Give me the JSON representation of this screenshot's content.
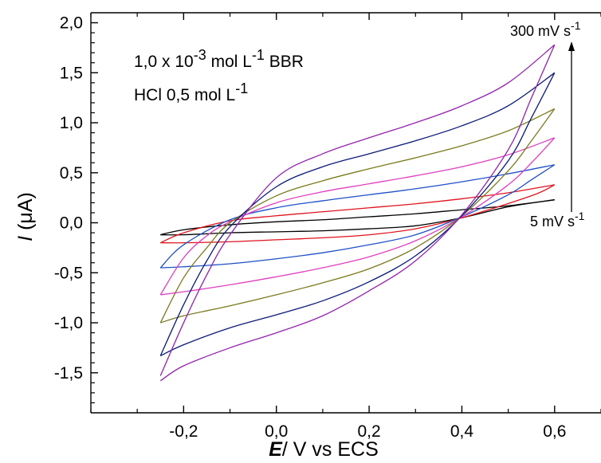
{
  "chart_data": {
    "type": "line",
    "xlabel": {
      "symbol": "E",
      "rest": "/ V vs ECS"
    },
    "ylabel": {
      "symbol": "I",
      "rest": " (μA)"
    },
    "xlim": [
      -0.4,
      0.7
    ],
    "ylim": [
      -1.9,
      2.1
    ],
    "xticks": [
      -0.2,
      0.0,
      0.2,
      0.4,
      0.6
    ],
    "xtick_labels": [
      "-0,2",
      "0,0",
      "0,2",
      "0,4",
      "0,6"
    ],
    "yticks": [
      2.0,
      1.5,
      1.0,
      0.5,
      0.0,
      -0.5,
      -1.0,
      -1.5
    ],
    "ytick_labels": [
      "2,0",
      "1,5",
      "1,0",
      "0,5",
      "0,0",
      "-0,5",
      "-1,0",
      "-1,5"
    ],
    "annotations": {
      "line1": {
        "a": "1,0 x 10",
        "sup1": "-3",
        "b": " mol L",
        "sup2": "-1",
        "c": " BBR"
      },
      "line2": {
        "a": "HCl 0,5 mol L",
        "sup": "-1"
      },
      "top_rate": {
        "a": "300 mV s",
        "sup": "-1"
      },
      "bottom_rate": {
        "a": "5 mV s",
        "sup": "-1"
      }
    },
    "series": [
      {
        "color": "#000000",
        "forward": [
          [
            -0.25,
            -0.12
          ],
          [
            -0.2,
            -0.07
          ],
          [
            -0.1,
            -0.02
          ],
          [
            0.0,
            0.01
          ],
          [
            0.1,
            0.03
          ],
          [
            0.2,
            0.06
          ],
          [
            0.3,
            0.09
          ],
          [
            0.4,
            0.13
          ],
          [
            0.5,
            0.17
          ],
          [
            0.6,
            0.23
          ]
        ],
        "reverse": [
          [
            0.6,
            0.23
          ],
          [
            0.5,
            0.16
          ],
          [
            0.4,
            0.05
          ],
          [
            0.3,
            -0.03
          ],
          [
            0.2,
            -0.06
          ],
          [
            0.1,
            -0.08
          ],
          [
            0.0,
            -0.09
          ],
          [
            -0.1,
            -0.1
          ],
          [
            -0.2,
            -0.12
          ],
          [
            -0.25,
            -0.12
          ]
        ]
      },
      {
        "color": "#e0141e",
        "forward": [
          [
            -0.25,
            -0.2
          ],
          [
            -0.2,
            -0.1
          ],
          [
            -0.1,
            0.02
          ],
          [
            0.0,
            0.07
          ],
          [
            0.1,
            0.11
          ],
          [
            0.2,
            0.15
          ],
          [
            0.3,
            0.19
          ],
          [
            0.4,
            0.24
          ],
          [
            0.5,
            0.3
          ],
          [
            0.6,
            0.38
          ]
        ],
        "reverse": [
          [
            0.6,
            0.38
          ],
          [
            0.55,
            0.27
          ],
          [
            0.4,
            0.05
          ],
          [
            0.3,
            -0.06
          ],
          [
            0.2,
            -0.12
          ],
          [
            0.1,
            -0.15
          ],
          [
            0.0,
            -0.17
          ],
          [
            -0.1,
            -0.19
          ],
          [
            -0.2,
            -0.2
          ],
          [
            -0.25,
            -0.2
          ]
        ]
      },
      {
        "color": "#1e50c8",
        "forward": [
          [
            -0.25,
            -0.45
          ],
          [
            -0.2,
            -0.22
          ],
          [
            -0.1,
            0.03
          ],
          [
            0.0,
            0.15
          ],
          [
            0.1,
            0.22
          ],
          [
            0.2,
            0.28
          ],
          [
            0.3,
            0.34
          ],
          [
            0.4,
            0.41
          ],
          [
            0.5,
            0.49
          ],
          [
            0.6,
            0.58
          ]
        ],
        "reverse": [
          [
            0.6,
            0.58
          ],
          [
            0.55,
            0.43
          ],
          [
            0.5,
            0.28
          ],
          [
            0.4,
            0.06
          ],
          [
            0.3,
            -0.12
          ],
          [
            0.2,
            -0.22
          ],
          [
            0.1,
            -0.3
          ],
          [
            0.0,
            -0.36
          ],
          [
            -0.1,
            -0.41
          ],
          [
            -0.2,
            -0.44
          ],
          [
            -0.25,
            -0.45
          ]
        ]
      },
      {
        "color": "#e040c0",
        "forward": [
          [
            -0.25,
            -0.72
          ],
          [
            -0.2,
            -0.35
          ],
          [
            -0.15,
            -0.13
          ],
          [
            -0.1,
            0.01
          ],
          [
            0.0,
            0.2
          ],
          [
            0.1,
            0.31
          ],
          [
            0.2,
            0.39
          ],
          [
            0.3,
            0.47
          ],
          [
            0.4,
            0.56
          ],
          [
            0.5,
            0.68
          ],
          [
            0.6,
            0.85
          ]
        ],
        "reverse": [
          [
            0.6,
            0.85
          ],
          [
            0.55,
            0.6
          ],
          [
            0.5,
            0.38
          ],
          [
            0.4,
            0.06
          ],
          [
            0.3,
            -0.18
          ],
          [
            0.2,
            -0.34
          ],
          [
            0.1,
            -0.45
          ],
          [
            0.0,
            -0.54
          ],
          [
            -0.1,
            -0.62
          ],
          [
            -0.2,
            -0.69
          ],
          [
            -0.25,
            -0.72
          ]
        ]
      },
      {
        "color": "#7a7a1e",
        "forward": [
          [
            -0.25,
            -1.0
          ],
          [
            -0.2,
            -0.55
          ],
          [
            -0.15,
            -0.25
          ],
          [
            -0.1,
            0.0
          ],
          [
            0.0,
            0.27
          ],
          [
            0.1,
            0.42
          ],
          [
            0.2,
            0.54
          ],
          [
            0.3,
            0.65
          ],
          [
            0.4,
            0.77
          ],
          [
            0.5,
            0.92
          ],
          [
            0.6,
            1.14
          ]
        ],
        "reverse": [
          [
            0.6,
            1.14
          ],
          [
            0.55,
            0.82
          ],
          [
            0.5,
            0.52
          ],
          [
            0.4,
            0.07
          ],
          [
            0.3,
            -0.25
          ],
          [
            0.2,
            -0.46
          ],
          [
            0.1,
            -0.6
          ],
          [
            0.0,
            -0.72
          ],
          [
            -0.1,
            -0.83
          ],
          [
            -0.2,
            -0.93
          ],
          [
            -0.25,
            -1.0
          ]
        ]
      },
      {
        "color": "#0a1a78",
        "forward": [
          [
            -0.25,
            -1.33
          ],
          [
            -0.2,
            -0.82
          ],
          [
            -0.15,
            -0.38
          ],
          [
            -0.1,
            -0.04
          ],
          [
            0.0,
            0.36
          ],
          [
            0.1,
            0.56
          ],
          [
            0.2,
            0.69
          ],
          [
            0.3,
            0.82
          ],
          [
            0.4,
            0.97
          ],
          [
            0.5,
            1.17
          ],
          [
            0.6,
            1.5
          ]
        ],
        "reverse": [
          [
            0.6,
            1.5
          ],
          [
            0.55,
            1.05
          ],
          [
            0.5,
            0.62
          ],
          [
            0.4,
            0.07
          ],
          [
            0.3,
            -0.33
          ],
          [
            0.2,
            -0.59
          ],
          [
            0.1,
            -0.78
          ],
          [
            0.0,
            -0.92
          ],
          [
            -0.1,
            -1.05
          ],
          [
            -0.2,
            -1.22
          ],
          [
            -0.25,
            -1.33
          ]
        ]
      },
      {
        "color": "#9422b0",
        "forward": [
          [
            -0.25,
            -1.53
          ],
          [
            -0.2,
            -1.0
          ],
          [
            -0.15,
            -0.52
          ],
          [
            -0.1,
            -0.12
          ],
          [
            0.0,
            0.45
          ],
          [
            0.1,
            0.69
          ],
          [
            0.2,
            0.85
          ],
          [
            0.3,
            1.0
          ],
          [
            0.4,
            1.17
          ],
          [
            0.5,
            1.4
          ],
          [
            0.6,
            1.78
          ]
        ],
        "reverse": [
          [
            0.6,
            1.78
          ],
          [
            0.55,
            1.25
          ],
          [
            0.5,
            0.73
          ],
          [
            0.4,
            0.08
          ],
          [
            0.3,
            -0.38
          ],
          [
            0.2,
            -0.68
          ],
          [
            0.1,
            -0.93
          ],
          [
            0.0,
            -1.1
          ],
          [
            -0.1,
            -1.25
          ],
          [
            -0.2,
            -1.43
          ],
          [
            -0.25,
            -1.58
          ]
        ]
      }
    ]
  }
}
